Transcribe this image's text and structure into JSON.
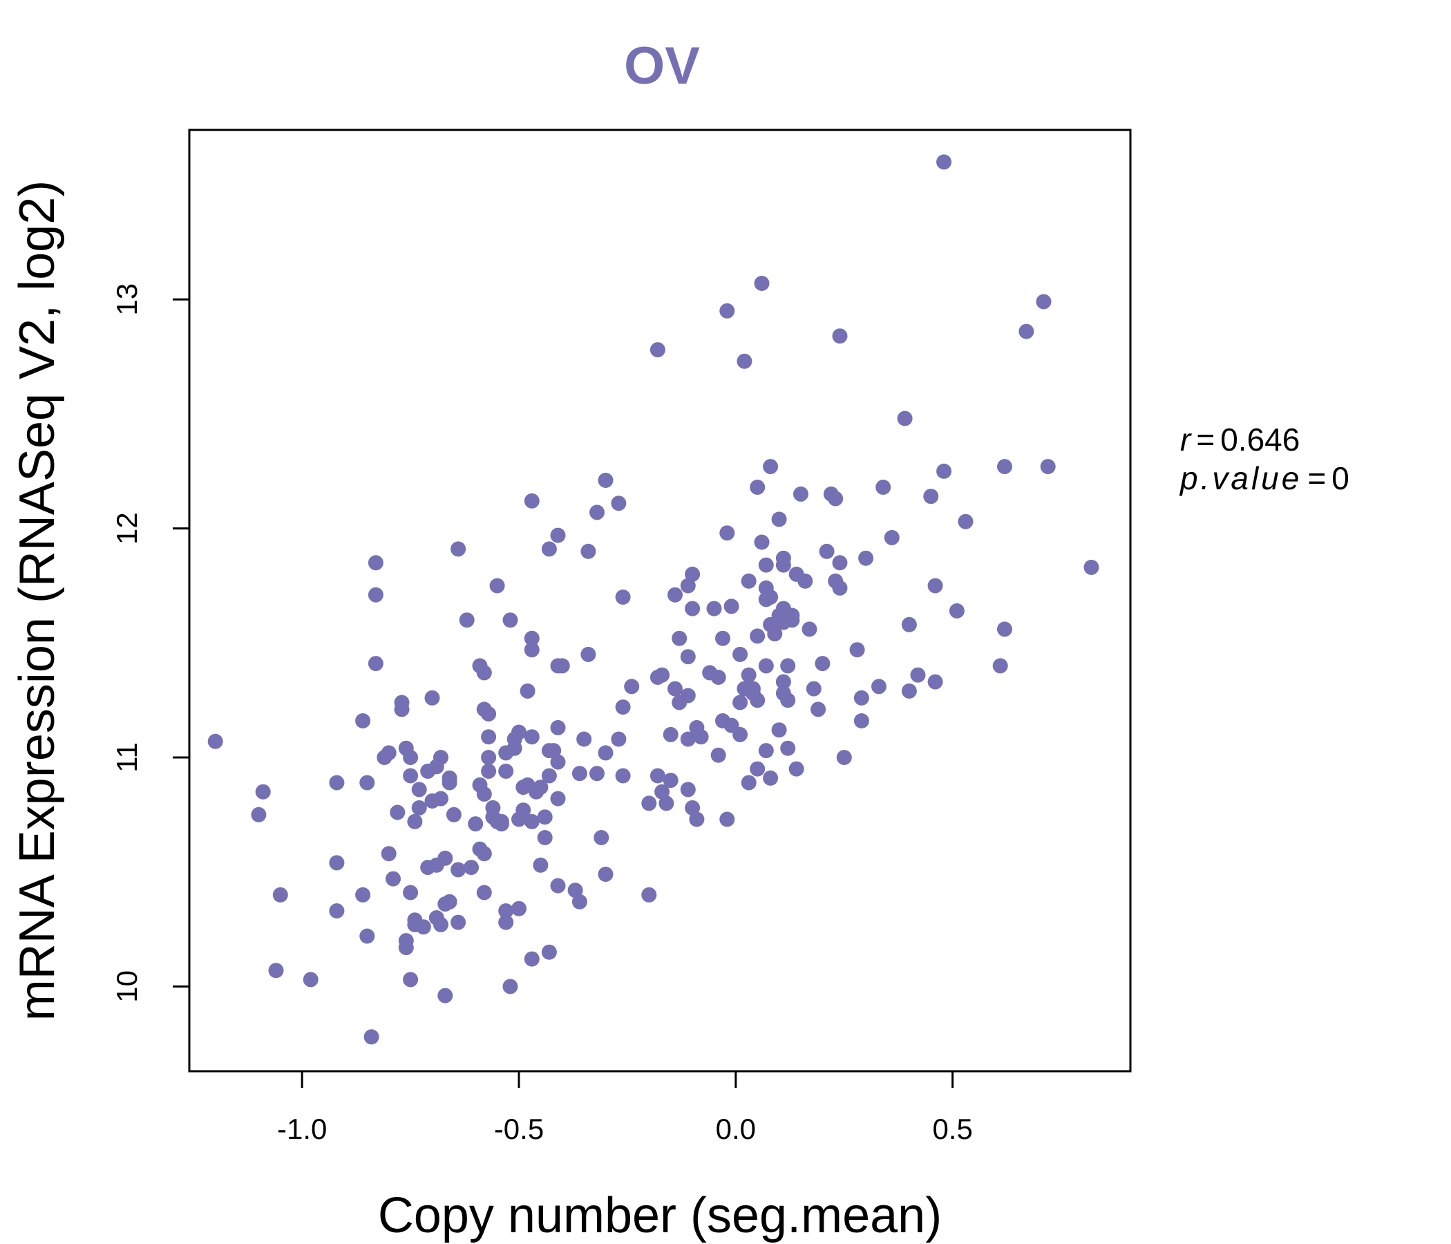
{
  "chart_data": {
    "type": "scatter",
    "title": "OV",
    "xlabel": "Copy number (seg.mean)",
    "ylabel": "mRNA Expression (RNASeq V2, log2)",
    "xlim": [
      -1.26,
      0.91
    ],
    "ylim": [
      9.63,
      13.74
    ],
    "xticks": [
      -1.0,
      -0.5,
      0.0,
      0.5
    ],
    "xtick_labels": [
      "-1.0",
      "-0.5",
      "0.0",
      "0.5"
    ],
    "yticks": [
      10,
      11,
      12,
      13
    ],
    "ytick_labels": [
      "10",
      "11",
      "12",
      "13"
    ],
    "grid": false,
    "colors": {
      "points": "#7570b3",
      "title": "#7570b3",
      "axis": "#000000"
    },
    "annotations": {
      "r_label": "r",
      "r_value": "0.646",
      "p_label": "p.value",
      "p_value": "0"
    },
    "points": [
      [
        -1.2,
        11.07
      ],
      [
        -1.09,
        10.85
      ],
      [
        -1.1,
        10.75
      ],
      [
        -1.05,
        10.4
      ],
      [
        -1.06,
        10.07
      ],
      [
        -0.98,
        10.03
      ],
      [
        -0.92,
        10.89
      ],
      [
        -0.92,
        10.54
      ],
      [
        -0.92,
        10.33
      ],
      [
        -0.86,
        11.16
      ],
      [
        -0.85,
        10.89
      ],
      [
        -0.86,
        10.4
      ],
      [
        -0.85,
        10.22
      ],
      [
        -0.83,
        11.85
      ],
      [
        -0.83,
        11.71
      ],
      [
        -0.83,
        11.41
      ],
      [
        -0.84,
        9.78
      ],
      [
        -0.81,
        11.0
      ],
      [
        -0.8,
        11.02
      ],
      [
        -0.8,
        10.58
      ],
      [
        -0.78,
        10.76
      ],
      [
        -0.79,
        10.47
      ],
      [
        -0.77,
        11.24
      ],
      [
        -0.77,
        11.21
      ],
      [
        -0.76,
        11.04
      ],
      [
        -0.76,
        10.2
      ],
      [
        -0.76,
        10.17
      ],
      [
        -0.75,
        10.92
      ],
      [
        -0.75,
        11.0
      ],
      [
        -0.74,
        10.72
      ],
      [
        -0.75,
        10.41
      ],
      [
        -0.74,
        10.29
      ],
      [
        -0.74,
        10.27
      ],
      [
        -0.75,
        10.03
      ],
      [
        -0.73,
        10.86
      ],
      [
        -0.73,
        10.78
      ],
      [
        -0.72,
        10.26
      ],
      [
        -0.7,
        11.26
      ],
      [
        -0.71,
        10.94
      ],
      [
        -0.71,
        10.52
      ],
      [
        -0.7,
        10.81
      ],
      [
        -0.69,
        10.96
      ],
      [
        -0.68,
        11.0
      ],
      [
        -0.69,
        10.53
      ],
      [
        -0.69,
        10.3
      ],
      [
        -0.68,
        10.27
      ],
      [
        -0.68,
        10.82
      ],
      [
        -0.67,
        10.56
      ],
      [
        -0.67,
        9.96
      ],
      [
        -0.66,
        10.91
      ],
      [
        -0.66,
        10.89
      ],
      [
        -0.67,
        10.36
      ],
      [
        -0.66,
        10.37
      ],
      [
        -0.65,
        10.75
      ],
      [
        -0.64,
        10.51
      ],
      [
        -0.64,
        10.28
      ],
      [
        -0.64,
        11.91
      ],
      [
        -0.62,
        11.6
      ],
      [
        -0.6,
        10.71
      ],
      [
        -0.61,
        10.52
      ],
      [
        -0.59,
        10.6
      ],
      [
        -0.59,
        11.4
      ],
      [
        -0.58,
        11.37
      ],
      [
        -0.58,
        11.21
      ],
      [
        -0.57,
        11.19
      ],
      [
        -0.59,
        10.88
      ],
      [
        -0.58,
        10.84
      ],
      [
        -0.58,
        10.58
      ],
      [
        -0.58,
        10.41
      ],
      [
        -0.57,
        11.09
      ],
      [
        -0.57,
        11.0
      ],
      [
        -0.57,
        10.94
      ],
      [
        -0.56,
        10.78
      ],
      [
        -0.56,
        10.74
      ],
      [
        -0.55,
        10.72
      ],
      [
        -0.55,
        11.75
      ],
      [
        -0.54,
        10.71
      ],
      [
        -0.54,
        10.72
      ],
      [
        -0.53,
        11.02
      ],
      [
        -0.53,
        10.94
      ],
      [
        -0.53,
        10.28
      ],
      [
        -0.53,
        10.33
      ],
      [
        -0.52,
        11.6
      ],
      [
        -0.52,
        10.0
      ],
      [
        -0.51,
        11.04
      ],
      [
        -0.51,
        11.08
      ],
      [
        -0.5,
        11.11
      ],
      [
        -0.5,
        10.73
      ],
      [
        -0.49,
        10.87
      ],
      [
        -0.49,
        10.77
      ],
      [
        -0.5,
        10.34
      ],
      [
        -0.48,
        11.29
      ],
      [
        -0.48,
        10.88
      ],
      [
        -0.47,
        10.72
      ],
      [
        -0.47,
        10.12
      ],
      [
        -0.47,
        12.12
      ],
      [
        -0.47,
        11.52
      ],
      [
        -0.47,
        11.47
      ],
      [
        -0.47,
        11.09
      ],
      [
        -0.46,
        10.85
      ],
      [
        -0.45,
        10.87
      ],
      [
        -0.45,
        10.53
      ],
      [
        -0.44,
        10.74
      ],
      [
        -0.44,
        10.65
      ],
      [
        -0.43,
        10.15
      ],
      [
        -0.43,
        11.91
      ],
      [
        -0.43,
        10.92
      ],
      [
        -0.43,
        11.03
      ],
      [
        -0.42,
        11.03
      ],
      [
        -0.41,
        11.97
      ],
      [
        -0.41,
        11.13
      ],
      [
        -0.41,
        10.98
      ],
      [
        -0.41,
        10.82
      ],
      [
        -0.41,
        10.44
      ],
      [
        -0.41,
        11.4
      ],
      [
        -0.4,
        11.4
      ],
      [
        -0.37,
        10.42
      ],
      [
        -0.36,
        10.93
      ],
      [
        -0.36,
        10.37
      ],
      [
        -0.35,
        11.08
      ],
      [
        -0.34,
        11.9
      ],
      [
        -0.34,
        11.45
      ],
      [
        -0.32,
        12.07
      ],
      [
        -0.32,
        10.93
      ],
      [
        -0.31,
        10.65
      ],
      [
        -0.3,
        12.21
      ],
      [
        -0.3,
        11.02
      ],
      [
        -0.3,
        10.49
      ],
      [
        -0.27,
        12.11
      ],
      [
        -0.27,
        11.08
      ],
      [
        -0.26,
        11.7
      ],
      [
        -0.26,
        11.22
      ],
      [
        -0.26,
        10.92
      ],
      [
        -0.24,
        11.31
      ],
      [
        -0.2,
        10.4
      ],
      [
        -0.2,
        10.8
      ],
      [
        -0.18,
        12.78
      ],
      [
        -0.18,
        11.35
      ],
      [
        -0.17,
        11.36
      ],
      [
        -0.18,
        10.92
      ],
      [
        -0.17,
        10.85
      ],
      [
        -0.16,
        10.8
      ],
      [
        -0.15,
        11.1
      ],
      [
        -0.15,
        10.9
      ],
      [
        -0.14,
        11.71
      ],
      [
        -0.13,
        11.52
      ],
      [
        -0.14,
        11.3
      ],
      [
        -0.13,
        11.24
      ],
      [
        -0.11,
        11.75
      ],
      [
        -0.11,
        11.27
      ],
      [
        -0.1,
        11.8
      ],
      [
        -0.11,
        11.44
      ],
      [
        -0.11,
        11.08
      ],
      [
        -0.11,
        10.86
      ],
      [
        -0.1,
        11.65
      ],
      [
        -0.1,
        10.78
      ],
      [
        -0.09,
        11.13
      ],
      [
        -0.08,
        11.09
      ],
      [
        -0.09,
        10.73
      ],
      [
        -0.06,
        11.37
      ],
      [
        -0.05,
        11.65
      ],
      [
        -0.04,
        11.35
      ],
      [
        -0.04,
        11.01
      ],
      [
        -0.03,
        11.52
      ],
      [
        -0.03,
        11.16
      ],
      [
        -0.02,
        12.95
      ],
      [
        -0.02,
        11.98
      ],
      [
        -0.01,
        11.66
      ],
      [
        -0.01,
        11.14
      ],
      [
        -0.02,
        10.73
      ],
      [
        0.01,
        11.45
      ],
      [
        0.01,
        11.24
      ],
      [
        0.01,
        11.1
      ],
      [
        0.02,
        12.73
      ],
      [
        0.02,
        11.3
      ],
      [
        0.03,
        11.36
      ],
      [
        0.03,
        11.77
      ],
      [
        0.03,
        10.89
      ],
      [
        0.04,
        11.3
      ],
      [
        0.04,
        11.28
      ],
      [
        0.05,
        10.95
      ],
      [
        0.05,
        11.25
      ],
      [
        0.05,
        11.53
      ],
      [
        0.05,
        12.18
      ],
      [
        0.06,
        13.07
      ],
      [
        0.06,
        11.94
      ],
      [
        0.07,
        11.84
      ],
      [
        0.07,
        11.74
      ],
      [
        0.07,
        11.69
      ],
      [
        0.07,
        11.03
      ],
      [
        0.07,
        11.4
      ],
      [
        0.08,
        12.27
      ],
      [
        0.08,
        11.58
      ],
      [
        0.08,
        11.7
      ],
      [
        0.08,
        10.91
      ],
      [
        0.09,
        11.54
      ],
      [
        0.1,
        12.04
      ],
      [
        0.1,
        11.62
      ],
      [
        0.1,
        11.12
      ],
      [
        0.11,
        11.87
      ],
      [
        0.11,
        11.84
      ],
      [
        0.11,
        11.65
      ],
      [
        0.11,
        11.59
      ],
      [
        0.11,
        11.33
      ],
      [
        0.11,
        11.28
      ],
      [
        0.12,
        11.04
      ],
      [
        0.12,
        11.25
      ],
      [
        0.12,
        11.4
      ],
      [
        0.13,
        11.62
      ],
      [
        0.13,
        11.6
      ],
      [
        0.14,
        11.8
      ],
      [
        0.14,
        10.95
      ],
      [
        0.15,
        12.15
      ],
      [
        0.16,
        11.77
      ],
      [
        0.17,
        11.56
      ],
      [
        0.18,
        11.3
      ],
      [
        0.19,
        11.21
      ],
      [
        0.2,
        11.41
      ],
      [
        0.21,
        11.9
      ],
      [
        0.22,
        12.15
      ],
      [
        0.23,
        12.13
      ],
      [
        0.23,
        11.77
      ],
      [
        0.24,
        11.85
      ],
      [
        0.24,
        11.74
      ],
      [
        0.24,
        12.84
      ],
      [
        0.25,
        11.0
      ],
      [
        0.28,
        11.47
      ],
      [
        0.29,
        11.16
      ],
      [
        0.29,
        11.26
      ],
      [
        0.3,
        11.87
      ],
      [
        0.33,
        11.31
      ],
      [
        0.34,
        12.18
      ],
      [
        0.36,
        11.96
      ],
      [
        0.39,
        12.48
      ],
      [
        0.4,
        11.58
      ],
      [
        0.4,
        11.29
      ],
      [
        0.42,
        11.36
      ],
      [
        0.45,
        12.14
      ],
      [
        0.46,
        11.75
      ],
      [
        0.46,
        11.33
      ],
      [
        0.48,
        13.6
      ],
      [
        0.48,
        12.25
      ],
      [
        0.51,
        11.64
      ],
      [
        0.53,
        12.03
      ],
      [
        0.61,
        11.4
      ],
      [
        0.62,
        11.56
      ],
      [
        0.62,
        12.27
      ],
      [
        0.67,
        12.86
      ],
      [
        0.71,
        12.99
      ],
      [
        0.72,
        12.27
      ],
      [
        0.82,
        11.83
      ]
    ]
  }
}
